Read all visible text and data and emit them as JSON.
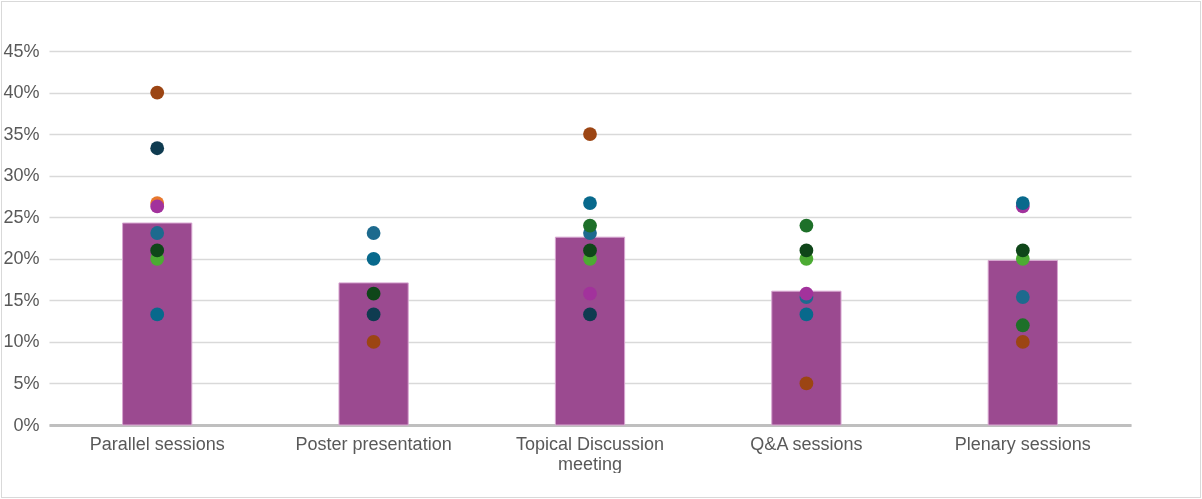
{
  "chart_data": {
    "type": "bar",
    "categories": [
      "Parallel sessions",
      "Poster presentation",
      "Topical Discussion meeting",
      "Q&A sessions",
      "Plenary sessions"
    ],
    "values": [
      24.3,
      17.1,
      22.6,
      16.1,
      19.8
    ],
    "color": "#9b4a90",
    "ylim": [
      0,
      45
    ],
    "yticks": [
      {
        "value": 0,
        "label": "0%"
      },
      {
        "value": 5,
        "label": "5%"
      },
      {
        "value": 10,
        "label": "10%"
      },
      {
        "value": 15,
        "label": "15%"
      },
      {
        "value": 20,
        "label": "20%"
      },
      {
        "value": 25,
        "label": "25%"
      },
      {
        "value": 30,
        "label": "30%"
      },
      {
        "value": 35,
        "label": "35%"
      },
      {
        "value": 40,
        "label": "40%"
      },
      {
        "value": 45,
        "label": "45%"
      }
    ],
    "grid": "y",
    "marker": "circle",
    "series": [
      {
        "type": "scatter",
        "color": "#e8782c",
        "x": [
          "Parallel sessions"
        ],
        "values": [
          26.7
        ]
      },
      {
        "type": "scatter",
        "color": "#1d6a8e",
        "x": [
          "Parallel sessions",
          "Poster presentation",
          "Topical Discussion meeting",
          "Q&A sessions",
          "Plenary sessions"
        ],
        "values": [
          23.1,
          23.1,
          23.1,
          15.4,
          15.4
        ]
      },
      {
        "type": "scatter",
        "color": "#a2329c",
        "x": [
          "Parallel sessions",
          "Topical Discussion meeting",
          "Q&A sessions",
          "Plenary sessions"
        ],
        "values": [
          26.3,
          15.8,
          15.8,
          26.3
        ]
      },
      {
        "type": "scatter",
        "color": "#08698c",
        "x": [
          "Parallel sessions",
          "Poster presentation",
          "Topical Discussion meeting",
          "Q&A sessions",
          "Plenary sessions"
        ],
        "values": [
          13.3,
          20,
          26.7,
          13.3,
          26.7
        ]
      },
      {
        "type": "scatter",
        "color": "#4cab33",
        "x": [
          "Parallel sessions",
          "Topical Discussion meeting",
          "Q&A sessions",
          "Plenary sessions"
        ],
        "values": [
          20,
          20,
          20,
          20
        ]
      },
      {
        "type": "scatter",
        "color": "#0f4619",
        "x": [
          "Parallel sessions",
          "Poster presentation",
          "Topical Discussion meeting",
          "Q&A sessions",
          "Plenary sessions"
        ],
        "values": [
          21,
          15.8,
          21,
          21,
          21
        ]
      },
      {
        "type": "scatter",
        "color": "#1e7029",
        "x": [
          "Topical Discussion meeting",
          "Q&A sessions",
          "Plenary sessions"
        ],
        "values": [
          24,
          24,
          12
        ]
      },
      {
        "type": "scatter",
        "color": "#0f3b50",
        "x": [
          "Parallel sessions",
          "Poster presentation",
          "Topical Discussion meeting"
        ],
        "values": [
          33.3,
          13.3,
          13.3
        ]
      },
      {
        "type": "scatter",
        "color": "#9c4513",
        "x": [
          "Parallel sessions",
          "Poster presentation",
          "Topical Discussion meeting",
          "Q&A sessions",
          "Plenary sessions"
        ],
        "values": [
          40,
          10,
          35,
          5,
          10
        ]
      }
    ]
  }
}
